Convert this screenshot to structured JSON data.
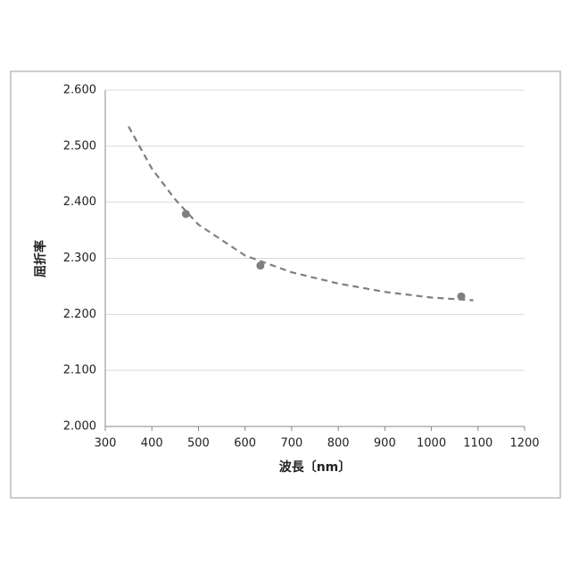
{
  "chart_data": {
    "type": "scatter",
    "x_label": "波長〔nm〕",
    "y_label": "屈折率",
    "x": [
      473,
      633,
      1064
    ],
    "values": [
      2.379,
      2.287,
      2.232
    ],
    "color": "#7f7f7f",
    "trendline": {
      "x": [
        350,
        400,
        450,
        500,
        600,
        700,
        800,
        900,
        1000,
        1090
      ],
      "values": [
        2.535,
        2.46,
        2.405,
        2.36,
        2.305,
        2.275,
        2.255,
        2.24,
        2.23,
        2.225
      ],
      "color": "#7f7f7f",
      "dashed": true
    },
    "xlim": [
      300,
      1200
    ],
    "xticks": [
      300,
      400,
      500,
      600,
      700,
      800,
      900,
      1000,
      1100,
      1200
    ],
    "ylim": [
      2.0,
      2.6
    ],
    "yticks": [
      {
        "value": 2.0,
        "label": "2.000"
      },
      {
        "value": 2.1,
        "label": "2.100"
      },
      {
        "value": 2.2,
        "label": "2.200"
      },
      {
        "value": 2.3,
        "label": "2.300"
      },
      {
        "value": 2.4,
        "label": "2.400"
      },
      {
        "value": 2.5,
        "label": "2.500"
      },
      {
        "value": 2.6,
        "label": "2.600"
      }
    ],
    "grid": true
  }
}
